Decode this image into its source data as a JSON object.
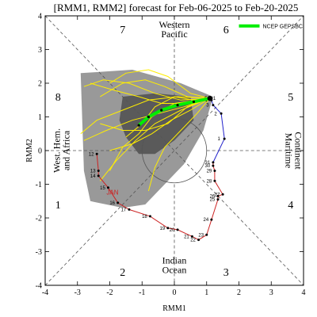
{
  "chart_data": {
    "type": "line",
    "title": "[RMM1, RMM2] forecast for Feb-06-2025 to Feb-20-2025",
    "xlabel": "RMM1",
    "ylabel": "RMM2",
    "xlim": [
      -4,
      4
    ],
    "ylim": [
      -4,
      4
    ],
    "xticks": [
      "-4",
      "-3",
      "-2",
      "-1",
      "0",
      "1",
      "2",
      "3",
      "4"
    ],
    "yticks": [
      "-4",
      "-3",
      "-2",
      "-1",
      "0",
      "1",
      "2",
      "3",
      "4"
    ],
    "phases": [
      {
        "label": "1",
        "x": -3.6,
        "y": -1.6
      },
      {
        "label": "2",
        "x": -1.6,
        "y": -3.6
      },
      {
        "label": "3",
        "x": 1.6,
        "y": -3.6
      },
      {
        "label": "4",
        "x": 3.6,
        "y": -1.6
      },
      {
        "label": "5",
        "x": 3.6,
        "y": 1.6
      },
      {
        "label": "6",
        "x": 1.6,
        "y": 3.6
      },
      {
        "label": "7",
        "x": -1.6,
        "y": 3.6
      },
      {
        "label": "8",
        "x": -3.6,
        "y": 1.6
      }
    ],
    "regions": [
      {
        "label": "Western Pacific",
        "lines": [
          "Western",
          "Pacific"
        ],
        "side": "top"
      },
      {
        "label": "Indian Ocean",
        "lines": [
          "Indian",
          "Ocean"
        ],
        "side": "bottom"
      },
      {
        "label": "West. Hem. and Africa",
        "lines": [
          "West. Hem.",
          "and Africa"
        ],
        "side": "left"
      },
      {
        "label": "Maritime Continent",
        "lines": [
          "Maritime",
          "Continent"
        ],
        "side": "right"
      }
    ],
    "legend": {
      "label": "NCEP GEPSBC",
      "color": "#00ee00",
      "placement": "top-right"
    },
    "month_labels": [
      {
        "text": "JAN",
        "x": -2.1,
        "y": -1.3,
        "color": "#cc2222"
      }
    ],
    "observed_track": {
      "colors": {
        "january": "#cc2222",
        "february": "#2222cc"
      },
      "points": [
        {
          "label": "12",
          "x": -2.4,
          "y": -0.1,
          "segment": "january"
        },
        {
          "label": "13",
          "x": -2.35,
          "y": -0.6,
          "segment": "january"
        },
        {
          "label": "14",
          "x": -2.35,
          "y": -0.75,
          "segment": "january"
        },
        {
          "label": "15",
          "x": -2.05,
          "y": -1.1,
          "segment": "january"
        },
        {
          "label": "16",
          "x": -1.75,
          "y": -1.55,
          "segment": "january"
        },
        {
          "label": "17",
          "x": -1.4,
          "y": -1.75,
          "segment": "january"
        },
        {
          "label": "18",
          "x": -0.75,
          "y": -1.95,
          "segment": "january"
        },
        {
          "label": "19",
          "x": -0.2,
          "y": -2.3,
          "segment": "january"
        },
        {
          "label": "20",
          "x": 0.1,
          "y": -2.35,
          "segment": "january"
        },
        {
          "label": "21",
          "x": 0.55,
          "y": -2.55,
          "segment": "january"
        },
        {
          "label": "22",
          "x": 0.75,
          "y": -2.65,
          "segment": "january"
        },
        {
          "label": "23",
          "x": 1.0,
          "y": -2.5,
          "segment": "january"
        },
        {
          "label": "24",
          "x": 1.15,
          "y": -2.05,
          "segment": "january"
        },
        {
          "label": "25",
          "x": 1.35,
          "y": -1.45,
          "segment": "january"
        },
        {
          "label": "26",
          "x": 1.35,
          "y": -1.35,
          "segment": "january"
        },
        {
          "label": "27",
          "x": 1.5,
          "y": -1.3,
          "segment": "january"
        },
        {
          "label": "28",
          "x": 1.25,
          "y": -0.9,
          "segment": "january"
        },
        {
          "label": "29",
          "x": 1.25,
          "y": -0.6,
          "segment": "january"
        },
        {
          "label": "30",
          "x": 1.2,
          "y": -0.45,
          "segment": "january"
        },
        {
          "label": "31",
          "x": 1.2,
          "y": -0.35,
          "segment": "january"
        },
        {
          "label": "1",
          "x": 1.55,
          "y": 0.35,
          "segment": "february"
        },
        {
          "label": "2",
          "x": 1.45,
          "y": 1.1,
          "segment": "february"
        },
        {
          "label": "3",
          "x": 1.2,
          "y": 1.35,
          "segment": "february"
        },
        {
          "label": "4",
          "x": 1.15,
          "y": 1.5,
          "segment": "february"
        },
        {
          "label": "5",
          "x": 1.15,
          "y": 1.55,
          "segment": "february"
        }
      ]
    },
    "ensemble_mean": {
      "color": "#00ee00",
      "points": [
        {
          "label": "1",
          "x": 1.1,
          "y": 1.55
        },
        {
          "label": "",
          "x": 0.6,
          "y": 1.45
        },
        {
          "label": "",
          "x": 0.1,
          "y": 1.35
        },
        {
          "label": "",
          "x": -0.4,
          "y": 1.2
        },
        {
          "label": "",
          "x": -0.8,
          "y": 1.0
        },
        {
          "label": "",
          "x": -1.1,
          "y": 0.75
        }
      ]
    },
    "ensemble_members": {
      "color": "#ffee00",
      "tracks": [
        [
          [
            1.1,
            1.55
          ],
          [
            0.2,
            1.5
          ],
          [
            -0.6,
            1.7
          ],
          [
            -1.4,
            2.0
          ],
          [
            -2.2,
            2.1
          ],
          [
            -2.8,
            1.9
          ]
        ],
        [
          [
            1.1,
            1.55
          ],
          [
            0.3,
            1.3
          ],
          [
            -0.5,
            1.1
          ],
          [
            -1.3,
            0.9
          ],
          [
            -2.1,
            0.6
          ],
          [
            -2.8,
            0.3
          ]
        ],
        [
          [
            1.1,
            1.55
          ],
          [
            0.4,
            1.6
          ],
          [
            -0.3,
            1.9
          ],
          [
            -0.9,
            2.1
          ],
          [
            -1.6,
            2.0
          ],
          [
            -2.3,
            1.6
          ]
        ],
        [
          [
            1.1,
            1.55
          ],
          [
            0.2,
            1.2
          ],
          [
            -0.6,
            0.8
          ],
          [
            -1.2,
            0.3
          ],
          [
            -1.8,
            -0.3
          ],
          [
            -2.3,
            -0.9
          ]
        ],
        [
          [
            1.1,
            1.55
          ],
          [
            0.5,
            1.2
          ],
          [
            -0.1,
            0.9
          ],
          [
            -0.7,
            0.5
          ],
          [
            -1.3,
            0.2
          ],
          [
            -2.0,
            0.0
          ]
        ],
        [
          [
            1.1,
            1.55
          ],
          [
            0.1,
            1.6
          ],
          [
            -0.8,
            1.5
          ],
          [
            -1.6,
            1.2
          ],
          [
            -2.4,
            0.9
          ],
          [
            -2.9,
            0.5
          ]
        ],
        [
          [
            1.1,
            1.55
          ],
          [
            0.6,
            1.5
          ],
          [
            0.0,
            1.6
          ],
          [
            -0.6,
            1.3
          ],
          [
            -1.0,
            0.8
          ],
          [
            -1.5,
            0.4
          ]
        ],
        [
          [
            1.1,
            1.55
          ],
          [
            0.3,
            1.4
          ],
          [
            -0.4,
            1.4
          ],
          [
            -1.1,
            1.6
          ],
          [
            -1.9,
            1.8
          ],
          [
            -2.6,
            2.0
          ]
        ],
        [
          [
            1.1,
            1.55
          ],
          [
            0.7,
            1.1
          ],
          [
            0.2,
            0.6
          ],
          [
            -0.3,
            0.1
          ],
          [
            -0.6,
            -0.5
          ],
          [
            -0.8,
            -1.2
          ]
        ],
        [
          [
            1.1,
            1.55
          ],
          [
            0.4,
            1.3
          ],
          [
            -0.2,
            0.8
          ],
          [
            -0.9,
            0.6
          ],
          [
            -1.6,
            0.6
          ],
          [
            -2.3,
            0.8
          ]
        ],
        [
          [
            1.1,
            1.55
          ],
          [
            0.0,
            1.4
          ],
          [
            -0.7,
            1.0
          ],
          [
            -1.1,
            0.5
          ],
          [
            -1.6,
            0.1
          ],
          [
            -2.0,
            -0.6
          ]
        ],
        [
          [
            1.1,
            1.55
          ],
          [
            0.5,
            1.7
          ],
          [
            -0.2,
            2.2
          ],
          [
            -0.8,
            2.4
          ],
          [
            -1.5,
            2.3
          ],
          [
            -2.0,
            2.0
          ]
        ]
      ]
    },
    "spread_outer": {
      "color": "#999999",
      "polygon": [
        [
          -2.9,
          2.3
        ],
        [
          -1.3,
          2.4
        ],
        [
          0.2,
          2.0
        ],
        [
          1.2,
          1.6
        ],
        [
          0.9,
          0.6
        ],
        [
          0.3,
          -0.4
        ],
        [
          -0.3,
          -1.0
        ],
        [
          -0.9,
          -1.6
        ],
        [
          -1.6,
          -1.7
        ],
        [
          -2.6,
          -1.5
        ],
        [
          -2.8,
          -0.6
        ]
      ]
    },
    "spread_inner": {
      "color": "#5a5a5a",
      "polygon": [
        [
          -1.6,
          1.6
        ],
        [
          -0.6,
          1.7
        ],
        [
          0.5,
          1.6
        ],
        [
          0.6,
          0.9
        ],
        [
          0.0,
          0.3
        ],
        [
          -0.6,
          -0.1
        ],
        [
          -1.1,
          -0.1
        ],
        [
          -1.5,
          0.4
        ],
        [
          -1.7,
          0.9
        ]
      ]
    }
  }
}
